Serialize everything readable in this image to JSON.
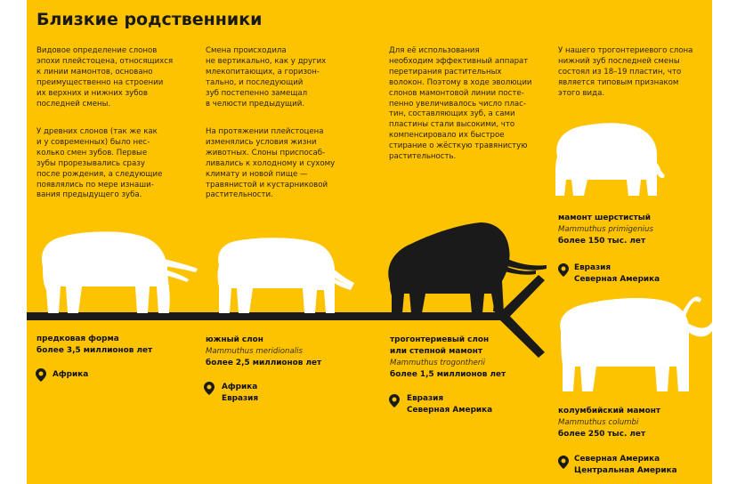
{
  "title": "Близкие родственники",
  "columns": [
    {
      "p1": "Видовое определение слонов\nэпохи плейстоцена, относящихся\nк линии мамонтов, основано\nпреимущественно на строении\nих верхних и нижних зубов\nпоследней смены.",
      "p2": "У древних слонов (так же как\nи у современных) было нес-\nколько смен зубов. Первые\nзубы прорезывались сразу\nпосле рождения, а следующие\nпоявлялись по мере изнаши-\nвания предыдущего зуба."
    },
    {
      "p1": "Смена происходила\nне вертикально, как у других\nмлекопитающих, а горизон-\nтально, и последующий\nзуб постепенно замещал\nв челюсти предыдущий.",
      "p2": "На протяжении плейстоцена\nизменялись условия жизни\nживотных. Слоны приспосаб-\nливались к холодному и сухому\nклимату и новой пище —\nтравянистой и кустарниковой\nрастительности."
    },
    {
      "p1": "Для её использования\nнеобходим эффективный аппарат\nперетирания растительных\nволокон. Поэтому в ходе эволюции\nслонов мамонтовой линии посте-\nпенно увеличивалось число плас-\nтин, составляющих зуб, а сами\nпластины стали высокими, что\nкомпенсировало их быстрое\nстирание о жёсткую травянистую\nрастительность."
    },
    {
      "p1": "У нашего трогонтериевого слона\nнижний зуб последней смены\nсостоял из 18–19 пластин, что\nявляется типовым признаком\nэтого вида."
    }
  ],
  "species": [
    {
      "name": "предковая форма",
      "age": "более 3,5 миллионов лет",
      "regions": [
        "Африка"
      ]
    },
    {
      "name": "южный слон",
      "latin": "Mammuthus meridionalis",
      "age": "более 2,5 миллионов лет",
      "regions": [
        "Африка",
        "Евразия"
      ]
    },
    {
      "name": "трогонтериевый слон\nили степной мамонт",
      "latin": "Mammuthus trogontherii",
      "age": "более 1,5 миллионов лет",
      "regions": [
        "Евразия",
        "Северная Америка"
      ]
    },
    {
      "name": "мамонт шерстистый",
      "latin": "Mammuthus primigenius",
      "age": "более 150 тыс. лет",
      "regions": [
        "Евразия",
        "Северная Америка"
      ]
    },
    {
      "name": "колумбийский мамонт",
      "latin": "Mammuthus columbi",
      "age": "более 250 тыс. лет",
      "regions": [
        "Северная Америка",
        "Центральная Америка"
      ]
    }
  ],
  "colors": {
    "background": "#fdc300",
    "silhouette_light": "#ffffff",
    "silhouette_dark": "#1a1a1a",
    "text": "#111111"
  }
}
